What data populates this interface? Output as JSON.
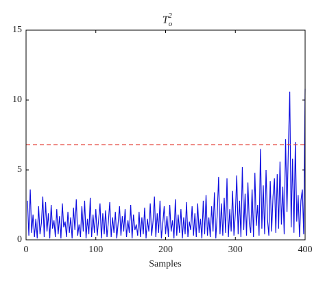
{
  "chart_data": {
    "type": "line",
    "title": {
      "base": "T",
      "sub": "o",
      "sup": "2"
    },
    "xlabel": "Samples",
    "xlim": [
      0,
      400
    ],
    "xticks": [
      0,
      100,
      200,
      300,
      400
    ],
    "ylim": [
      0,
      15
    ],
    "yticks": [
      0,
      5,
      10,
      15
    ],
    "threshold": {
      "value": 6.8,
      "color": "#e3342a"
    },
    "x": [
      2,
      4,
      6,
      8,
      10,
      12,
      14,
      16,
      18,
      20,
      22,
      24,
      26,
      28,
      30,
      32,
      34,
      36,
      38,
      40,
      42,
      44,
      46,
      48,
      50,
      52,
      54,
      56,
      58,
      60,
      62,
      64,
      66,
      68,
      70,
      72,
      74,
      76,
      78,
      80,
      82,
      84,
      86,
      88,
      90,
      92,
      94,
      96,
      98,
      100,
      102,
      104,
      106,
      108,
      110,
      112,
      114,
      116,
      118,
      120,
      122,
      124,
      126,
      128,
      130,
      132,
      134,
      136,
      138,
      140,
      142,
      144,
      146,
      148,
      150,
      152,
      154,
      156,
      158,
      160,
      162,
      164,
      166,
      168,
      170,
      172,
      174,
      176,
      178,
      180,
      182,
      184,
      186,
      188,
      190,
      192,
      194,
      196,
      198,
      200,
      202,
      204,
      206,
      208,
      210,
      212,
      214,
      216,
      218,
      220,
      222,
      224,
      226,
      228,
      230,
      232,
      234,
      236,
      238,
      240,
      242,
      244,
      246,
      248,
      250,
      252,
      254,
      256,
      258,
      260,
      262,
      264,
      266,
      268,
      270,
      272,
      274,
      276,
      278,
      280,
      282,
      284,
      286,
      288,
      290,
      292,
      294,
      296,
      298,
      300,
      302,
      304,
      306,
      308,
      310,
      312,
      314,
      316,
      318,
      320,
      322,
      324,
      326,
      328,
      330,
      332,
      334,
      336,
      338,
      340,
      342,
      344,
      346,
      348,
      350,
      352,
      354,
      356,
      358,
      360,
      362,
      364,
      366,
      368,
      370,
      372,
      374,
      376,
      378,
      380,
      382,
      384,
      386,
      388,
      390,
      392,
      394,
      396,
      398,
      400
    ],
    "series": [
      {
        "name": "T2",
        "color": "#1010e0",
        "values": [
          2.8,
          0.3,
          3.6,
          0.5,
          1.8,
          0.2,
          1.5,
          0.1,
          2.4,
          0.4,
          1.2,
          3.1,
          0.2,
          2.7,
          0.6,
          1.9,
          0.1,
          2.5,
          0.8,
          1.4,
          0.2,
          2.2,
          0.4,
          1.7,
          0.1,
          2.6,
          0.9,
          1.3,
          0.2,
          2.0,
          0.5,
          1.6,
          0.1,
          2.3,
          0.7,
          2.9,
          0.3,
          1.1,
          0.2,
          2.4,
          0.6,
          2.8,
          0.1,
          1.5,
          0.4,
          3.0,
          0.2,
          1.8,
          0.5,
          2.2,
          0.3,
          1.4,
          2.6,
          0.1,
          1.9,
          0.4,
          2.1,
          0.2,
          1.3,
          2.7,
          0.2,
          1.6,
          0.5,
          2.0,
          0.1,
          1.2,
          2.4,
          0.3,
          1.7,
          0.6,
          2.2,
          0.2,
          1.4,
          0.5,
          2.5,
          0.1,
          1.8,
          0.7,
          1.1,
          0.3,
          2.0,
          0.2,
          1.6,
          0.4,
          2.3,
          0.1,
          1.5,
          0.6,
          2.6,
          0.3,
          1.3,
          3.1,
          0.2,
          1.9,
          0.5,
          2.8,
          0.1,
          1.2,
          2.4,
          0.4,
          1.7,
          0.2,
          2.5,
          0.6,
          1.4,
          0.1,
          2.9,
          0.3,
          1.8,
          0.5,
          2.2,
          0.1,
          1.6,
          0.4,
          2.7,
          0.2,
          1.3,
          0.7,
          2.4,
          0.3,
          1.9,
          0.2,
          2.6,
          0.5,
          1.5,
          0.1,
          2.8,
          0.4,
          3.2,
          0.3,
          1.6,
          0.2,
          2.4,
          0.6,
          3.4,
          0.1,
          1.8,
          4.5,
          0.4,
          2.6,
          0.3,
          3.0,
          0.5,
          4.4,
          0.2,
          2.2,
          0.6,
          3.5,
          0.3,
          1.9,
          4.6,
          0.4,
          2.8,
          0.2,
          5.2,
          0.7,
          3.3,
          0.3,
          4.1,
          1.2,
          0.5,
          3.6,
          0.2,
          4.8,
          1.0,
          2.5,
          0.3,
          6.5,
          0.8,
          3.9,
          0.4,
          5.0,
          1.5,
          0.3,
          4.2,
          0.6,
          3.1,
          4.4,
          0.5,
          4.7,
          0.8,
          5.6,
          1.1,
          3.8,
          0.4,
          7.2,
          2.0,
          6.6,
          10.6,
          0.9,
          5.8,
          0.5,
          7.0,
          1.3,
          3.2,
          0.2,
          2.8,
          3.6,
          0.4,
          10.8
        ]
      }
    ]
  }
}
